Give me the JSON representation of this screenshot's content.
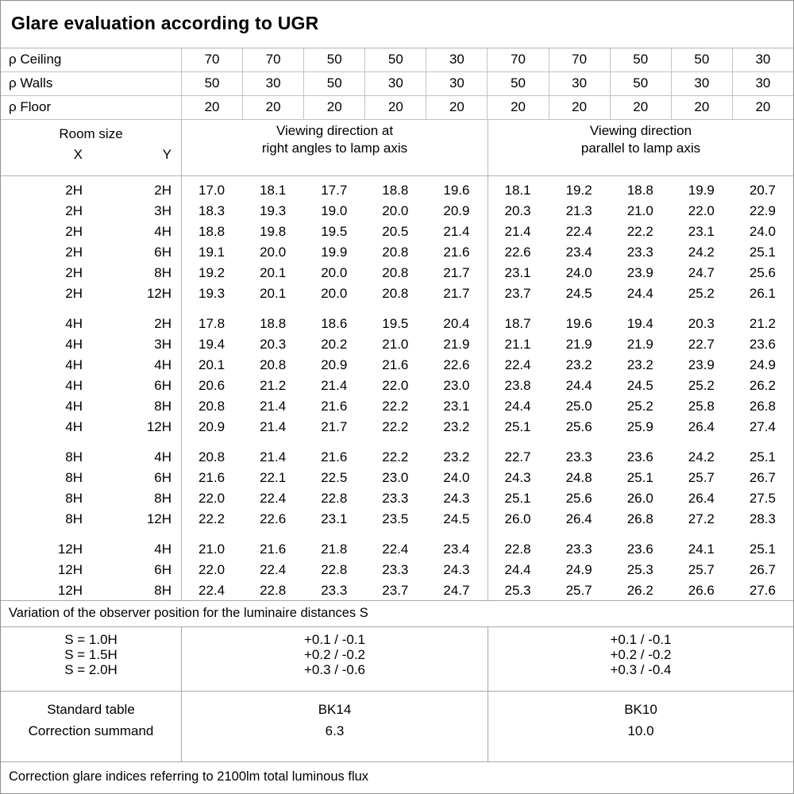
{
  "title": "Glare evaluation according to UGR",
  "reflectance": {
    "rows": [
      {
        "label": "ρ Ceiling",
        "values": [
          "70",
          "70",
          "50",
          "50",
          "30",
          "70",
          "70",
          "50",
          "50",
          "30"
        ]
      },
      {
        "label": "ρ Walls",
        "values": [
          "50",
          "30",
          "50",
          "30",
          "30",
          "50",
          "30",
          "50",
          "30",
          "30"
        ]
      },
      {
        "label": "ρ Floor",
        "values": [
          "20",
          "20",
          "20",
          "20",
          "20",
          "20",
          "20",
          "20",
          "20",
          "20"
        ]
      }
    ]
  },
  "header": {
    "room_size_label": "Room size",
    "x_label": "X",
    "y_label": "Y",
    "group1_line1": "Viewing direction at",
    "group1_line2": "right angles to lamp axis",
    "group2_line1": "Viewing direction",
    "group2_line2": "parallel to lamp axis"
  },
  "ugr_blocks": [
    {
      "rows": [
        {
          "x": "2H",
          "y": "2H",
          "values": [
            "17.0",
            "18.1",
            "17.7",
            "18.8",
            "19.6",
            "18.1",
            "19.2",
            "18.8",
            "19.9",
            "20.7"
          ]
        },
        {
          "x": "2H",
          "y": "3H",
          "values": [
            "18.3",
            "19.3",
            "19.0",
            "20.0",
            "20.9",
            "20.3",
            "21.3",
            "21.0",
            "22.0",
            "22.9"
          ]
        },
        {
          "x": "2H",
          "y": "4H",
          "values": [
            "18.8",
            "19.8",
            "19.5",
            "20.5",
            "21.4",
            "21.4",
            "22.4",
            "22.2",
            "23.1",
            "24.0"
          ]
        },
        {
          "x": "2H",
          "y": "6H",
          "values": [
            "19.1",
            "20.0",
            "19.9",
            "20.8",
            "21.6",
            "22.6",
            "23.4",
            "23.3",
            "24.2",
            "25.1"
          ]
        },
        {
          "x": "2H",
          "y": "8H",
          "values": [
            "19.2",
            "20.1",
            "20.0",
            "20.8",
            "21.7",
            "23.1",
            "24.0",
            "23.9",
            "24.7",
            "25.6"
          ]
        },
        {
          "x": "2H",
          "y": "12H",
          "values": [
            "19.3",
            "20.1",
            "20.0",
            "20.8",
            "21.7",
            "23.7",
            "24.5",
            "24.4",
            "25.2",
            "26.1"
          ]
        }
      ]
    },
    {
      "rows": [
        {
          "x": "4H",
          "y": "2H",
          "values": [
            "17.8",
            "18.8",
            "18.6",
            "19.5",
            "20.4",
            "18.7",
            "19.6",
            "19.4",
            "20.3",
            "21.2"
          ]
        },
        {
          "x": "4H",
          "y": "3H",
          "values": [
            "19.4",
            "20.3",
            "20.2",
            "21.0",
            "21.9",
            "21.1",
            "21.9",
            "21.9",
            "22.7",
            "23.6"
          ]
        },
        {
          "x": "4H",
          "y": "4H",
          "values": [
            "20.1",
            "20.8",
            "20.9",
            "21.6",
            "22.6",
            "22.4",
            "23.2",
            "23.2",
            "23.9",
            "24.9"
          ]
        },
        {
          "x": "4H",
          "y": "6H",
          "values": [
            "20.6",
            "21.2",
            "21.4",
            "22.0",
            "23.0",
            "23.8",
            "24.4",
            "24.5",
            "25.2",
            "26.2"
          ]
        },
        {
          "x": "4H",
          "y": "8H",
          "values": [
            "20.8",
            "21.4",
            "21.6",
            "22.2",
            "23.1",
            "24.4",
            "25.0",
            "25.2",
            "25.8",
            "26.8"
          ]
        },
        {
          "x": "4H",
          "y": "12H",
          "values": [
            "20.9",
            "21.4",
            "21.7",
            "22.2",
            "23.2",
            "25.1",
            "25.6",
            "25.9",
            "26.4",
            "27.4"
          ]
        }
      ]
    },
    {
      "rows": [
        {
          "x": "8H",
          "y": "4H",
          "values": [
            "20.8",
            "21.4",
            "21.6",
            "22.2",
            "23.2",
            "22.7",
            "23.3",
            "23.6",
            "24.2",
            "25.1"
          ]
        },
        {
          "x": "8H",
          "y": "6H",
          "values": [
            "21.6",
            "22.1",
            "22.5",
            "23.0",
            "24.0",
            "24.3",
            "24.8",
            "25.1",
            "25.7",
            "26.7"
          ]
        },
        {
          "x": "8H",
          "y": "8H",
          "values": [
            "22.0",
            "22.4",
            "22.8",
            "23.3",
            "24.3",
            "25.1",
            "25.6",
            "26.0",
            "26.4",
            "27.5"
          ]
        },
        {
          "x": "8H",
          "y": "12H",
          "values": [
            "22.2",
            "22.6",
            "23.1",
            "23.5",
            "24.5",
            "26.0",
            "26.4",
            "26.8",
            "27.2",
            "28.3"
          ]
        }
      ]
    },
    {
      "rows": [
        {
          "x": "12H",
          "y": "4H",
          "values": [
            "21.0",
            "21.6",
            "21.8",
            "22.4",
            "23.4",
            "22.8",
            "23.3",
            "23.6",
            "24.1",
            "25.1"
          ]
        },
        {
          "x": "12H",
          "y": "6H",
          "values": [
            "22.0",
            "22.4",
            "22.8",
            "23.3",
            "24.3",
            "24.4",
            "24.9",
            "25.3",
            "25.7",
            "26.7"
          ]
        },
        {
          "x": "12H",
          "y": "8H",
          "values": [
            "22.4",
            "22.8",
            "23.3",
            "23.7",
            "24.7",
            "25.3",
            "25.7",
            "26.2",
            "26.6",
            "27.6"
          ]
        }
      ]
    }
  ],
  "variation_note": "Variation of the observer position for the luminaire distances S",
  "s_variation": {
    "labels": [
      "S = 1.0H",
      "S = 1.5H",
      "S = 2.0H"
    ],
    "group1": [
      "+0.1 / -0.1",
      "+0.2 / -0.2",
      "+0.3 / -0.6"
    ],
    "group2": [
      "+0.1 / -0.1",
      "+0.2 / -0.2",
      "+0.3 / -0.4"
    ]
  },
  "standard": {
    "labels": [
      "Standard table",
      "Correction summand"
    ],
    "group1": [
      "BK14",
      "6.3"
    ],
    "group2": [
      "BK10",
      "10.0"
    ]
  },
  "footer_note": "Correction glare indices referring to 2100lm total luminous flux",
  "colors": {
    "background": "#ffffff",
    "text": "#000000",
    "grid_line": "#c2c2c2",
    "section_line": "#a8a8a8",
    "outer_border": "#8f8f8f"
  }
}
